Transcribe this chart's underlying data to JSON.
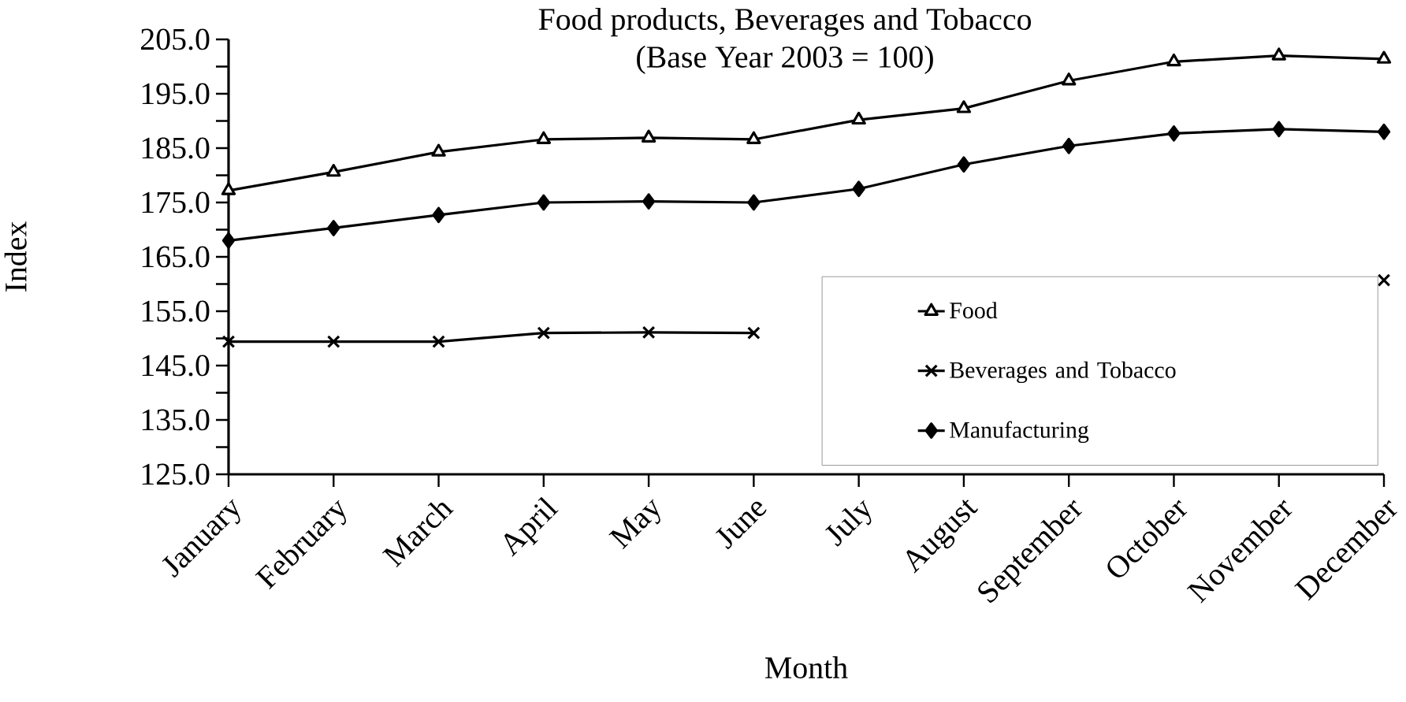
{
  "chart_data": {
    "type": "line",
    "title": "Food products, Beverages and Tobacco",
    "subtitle": "(Base Year 2003 = 100)",
    "xlabel": "Month",
    "ylabel": "Index",
    "categories": [
      "January",
      "February",
      "March",
      "April",
      "May",
      "June",
      "July",
      "August",
      "September",
      "October",
      "November",
      "December"
    ],
    "series": [
      {
        "name": "Food",
        "color": "#000000",
        "marker": "triangle",
        "values": [
          177.2,
          180.6,
          184.3,
          186.6,
          186.9,
          186.6,
          190.2,
          192.3,
          197.4,
          200.9,
          202.0,
          201.4
        ]
      },
      {
        "name": "Beverages and Tobacco",
        "color": "#000000",
        "marker": "cross",
        "values": [
          149.4,
          149.4,
          149.4,
          151.0,
          151.1,
          151.0,
          null,
          null,
          null,
          null,
          null,
          160.7
        ]
      },
      {
        "name": "Manufacturing",
        "color": "#000000",
        "marker": "diamond",
        "values": [
          168.0,
          170.3,
          172.7,
          175.0,
          175.2,
          175.0,
          177.5,
          182.0,
          185.4,
          187.7,
          188.5,
          188.0
        ]
      }
    ],
    "ylim": [
      125,
      205
    ],
    "yticks": [
      {
        "value": 125,
        "label": "125.0"
      },
      {
        "value": 130,
        "label": null
      },
      {
        "value": 135,
        "label": "135.0"
      },
      {
        "value": 140,
        "label": null
      },
      {
        "value": 145,
        "label": "145.0"
      },
      {
        "value": 150,
        "label": null
      },
      {
        "value": 155,
        "label": "155.0"
      },
      {
        "value": 160,
        "label": null
      },
      {
        "value": 165,
        "label": "165.0"
      },
      {
        "value": 170,
        "label": null
      },
      {
        "value": 175,
        "label": "175.0"
      },
      {
        "value": 180,
        "label": null
      },
      {
        "value": 185,
        "label": "185.0"
      },
      {
        "value": 190,
        "label": null
      },
      {
        "value": 195,
        "label": "195.0"
      },
      {
        "value": 200,
        "label": null
      },
      {
        "value": 205,
        "label": "205.0"
      }
    ],
    "grid": false,
    "legend": "bottom right",
    "line_style": "solid"
  }
}
